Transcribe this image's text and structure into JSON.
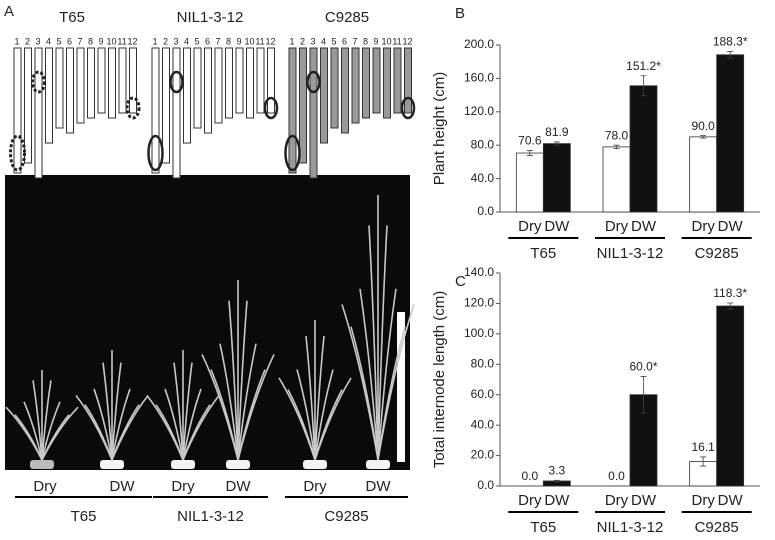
{
  "panel_a": {
    "label": "A",
    "lines": [
      "T65",
      "NIL1-3-12",
      "C9285"
    ],
    "chromosomes": [
      1,
      2,
      3,
      4,
      5,
      6,
      7,
      8,
      9,
      10,
      11,
      12
    ],
    "treatments": [
      "Dry",
      "DW"
    ]
  },
  "chart_data": [
    {
      "type": "bar",
      "panel": "B",
      "ylabel": "Plant height (cm)",
      "categories": [
        "T65",
        "NIL1-3-12",
        "C9285"
      ],
      "series": [
        {
          "name": "Dry",
          "color": "#ffffff",
          "values": [
            70.6,
            78.0,
            90.0
          ],
          "value_labels": [
            "70.6",
            "78.0",
            "90.0"
          ],
          "errors": [
            3,
            2,
            1.5
          ]
        },
        {
          "name": "DW",
          "color": "#111111",
          "values": [
            81.9,
            151.2,
            188.3
          ],
          "value_labels": [
            "81.9",
            "151.2*",
            "188.3*"
          ],
          "errors": [
            2,
            12,
            4
          ]
        }
      ],
      "ylim": [
        0,
        200
      ],
      "yticks": [
        {
          "value": 0,
          "label": "0.0"
        },
        {
          "value": 40,
          "label": "40.0"
        },
        {
          "value": 80,
          "label": "80.0"
        },
        {
          "value": 120,
          "label": "120.0"
        },
        {
          "value": 160,
          "label": "160.0"
        },
        {
          "value": 200,
          "label": "200.0"
        }
      ]
    },
    {
      "type": "bar",
      "panel": "C",
      "ylabel": "Total internode length (cm)",
      "categories": [
        "T65",
        "NIL1-3-12",
        "C9285"
      ],
      "series": [
        {
          "name": "Dry",
          "color": "#ffffff",
          "values": [
            0.0,
            0.0,
            16.1
          ],
          "value_labels": [
            "0.0",
            "0.0",
            "16.1"
          ],
          "errors": [
            0,
            0,
            3
          ]
        },
        {
          "name": "DW",
          "color": "#111111",
          "values": [
            3.3,
            60.0,
            118.3
          ],
          "value_labels": [
            "3.3",
            "60.0*",
            "118.3*"
          ],
          "errors": [
            0.5,
            12,
            2
          ]
        }
      ],
      "ylim": [
        0,
        140
      ],
      "yticks": [
        {
          "value": 0,
          "label": "0.0"
        },
        {
          "value": 20,
          "label": "20.0"
        },
        {
          "value": 40,
          "label": "40.0"
        },
        {
          "value": 60,
          "label": "60.0"
        },
        {
          "value": 80,
          "label": "80.0"
        },
        {
          "value": 100,
          "label": "100.0"
        },
        {
          "value": 120,
          "label": "120.0"
        },
        {
          "value": 140,
          "label": "140.0"
        }
      ]
    }
  ]
}
